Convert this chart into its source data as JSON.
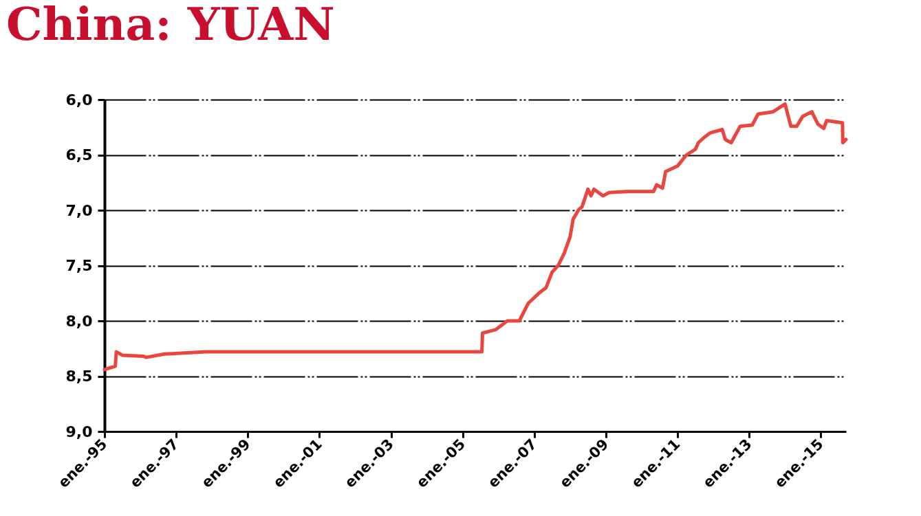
{
  "chart_data": {
    "type": "line",
    "title": "China: YUAN",
    "x": [
      "1995-01",
      "1995-04-20",
      "1995-05",
      "1995-07",
      "1996-02",
      "1996-03",
      "1996-09",
      "1997-11",
      "2005-07-15",
      "2005-07-22",
      "2005-12",
      "2006-04",
      "2006-08",
      "2006-11",
      "2007-03",
      "2007-05",
      "2007-07",
      "2007-09",
      "2007-11",
      "2008-01",
      "2008-02",
      "2008-04",
      "2008-05",
      "2008-07",
      "2008-08",
      "2008-09",
      "2008-12",
      "2009-02",
      "2009-08",
      "2010-05",
      "2010-06",
      "2010-08",
      "2010-09",
      "2011-01",
      "2011-04",
      "2011-07",
      "2011-08",
      "2011-10",
      "2011-12",
      "2012-04",
      "2012-05",
      "2012-07",
      "2012-10",
      "2013-02",
      "2013-04",
      "2013-09",
      "2014-01",
      "2014-03",
      "2014-05",
      "2014-07",
      "2014-10",
      "2014-12",
      "2015-02",
      "2015-03",
      "2015-08-10",
      "2015-08-13",
      "2015-09-15"
    ],
    "series": [
      {
        "color": "#e8473f",
        "values": [
          8.44,
          8.41,
          8.28,
          8.31,
          8.32,
          8.33,
          8.3,
          8.28,
          8.28,
          8.11,
          8.08,
          8.0,
          8.0,
          7.84,
          7.74,
          7.7,
          7.56,
          7.5,
          7.39,
          7.24,
          7.08,
          6.99,
          6.97,
          6.81,
          6.87,
          6.81,
          6.87,
          6.84,
          6.83,
          6.83,
          6.77,
          6.8,
          6.65,
          6.6,
          6.5,
          6.45,
          6.39,
          6.34,
          6.3,
          6.27,
          6.36,
          6.39,
          6.24,
          6.23,
          6.13,
          6.11,
          6.04,
          6.24,
          6.24,
          6.15,
          6.11,
          6.22,
          6.26,
          6.19,
          6.21,
          6.39,
          6.36
        ]
      }
    ],
    "xlim": [
      "1995-01",
      "2015-09-15"
    ],
    "xticks": [
      {
        "value": "1995-01",
        "label": "ene.-95"
      },
      {
        "value": "1997-01",
        "label": "ene.-97"
      },
      {
        "value": "1999-01",
        "label": "ene.-99"
      },
      {
        "value": "2001-01",
        "label": "ene.-01"
      },
      {
        "value": "2003-01",
        "label": "ene.-03"
      },
      {
        "value": "2005-01",
        "label": "ene.-05"
      },
      {
        "value": "2007-01",
        "label": "ene.-07"
      },
      {
        "value": "2009-01",
        "label": "ene.-09"
      },
      {
        "value": "2011-01",
        "label": "ene.-11"
      },
      {
        "value": "2013-01",
        "label": "ene.-13"
      },
      {
        "value": "2015-01",
        "label": "ene.-15"
      }
    ],
    "ylim": [
      9,
      6
    ],
    "yticks": [
      {
        "value": 6,
        "label": "6,0"
      },
      {
        "value": 6.5,
        "label": "6,5"
      },
      {
        "value": 7,
        "label": "7,0"
      },
      {
        "value": 7.5,
        "label": "7,5"
      },
      {
        "value": 8,
        "label": "8,0"
      },
      {
        "value": 8.5,
        "label": "8,5"
      },
      {
        "value": 9,
        "label": "9,0"
      }
    ],
    "grid": "y"
  }
}
